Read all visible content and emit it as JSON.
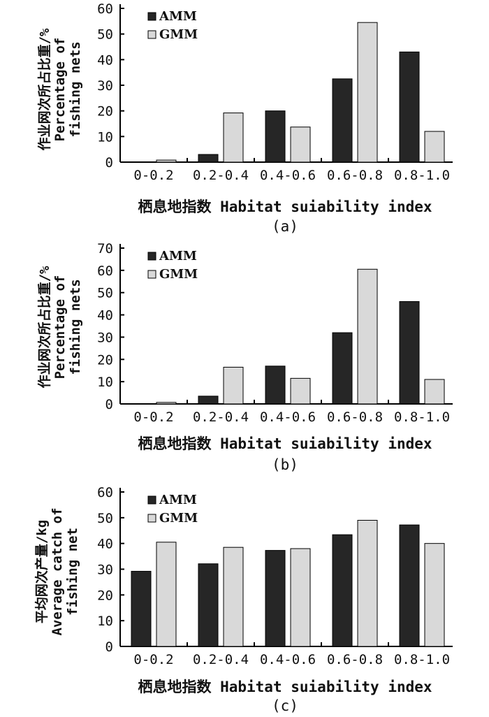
{
  "colors": {
    "AMM": "#262626",
    "GMM": "#d9d9d9",
    "axis": "#000000"
  },
  "chart_data": [
    {
      "type": "bar",
      "panel_label": "(a)",
      "categories": [
        "0-0.2",
        "0.2-0.4",
        "0.4-0.6",
        "0.6-0.8",
        "0.8-1.0"
      ],
      "series": [
        {
          "name": "AMM",
          "values": [
            0,
            3,
            20,
            32.5,
            43
          ]
        },
        {
          "name": "GMM",
          "values": [
            0.8,
            19.2,
            13.7,
            54.5,
            12
          ]
        }
      ],
      "ylabel_lines": [
        "作业网次所占比重/%",
        "Percentage of",
        "fishing nets"
      ],
      "xlabel": "栖息地指数 Habitat suiability index",
      "ylim": [
        0,
        60
      ],
      "yticks": [
        0,
        10,
        20,
        30,
        40,
        50,
        60
      ],
      "legend_position": "top-left",
      "grid": false
    },
    {
      "type": "bar",
      "panel_label": "(b)",
      "categories": [
        "0-0.2",
        "0.2-0.4",
        "0.4-0.6",
        "0.6-0.8",
        "0.8-1.0"
      ],
      "series": [
        {
          "name": "AMM",
          "values": [
            0,
            3.5,
            17,
            32,
            46
          ]
        },
        {
          "name": "GMM",
          "values": [
            0.7,
            16.5,
            11.5,
            60.5,
            11
          ]
        }
      ],
      "ylabel_lines": [
        "作业网次所占比重/%",
        "Percentage of",
        "fishing nets"
      ],
      "xlabel": "栖息地指数 Habitat suiability index",
      "ylim": [
        0,
        70
      ],
      "yticks": [
        0,
        10,
        20,
        30,
        40,
        50,
        60,
        70
      ],
      "legend_position": "top-left",
      "grid": false
    },
    {
      "type": "bar",
      "panel_label": "(c)",
      "categories": [
        "0-0.2",
        "0.2-0.4",
        "0.4-0.6",
        "0.6-0.8",
        "0.8-1.0"
      ],
      "series": [
        {
          "name": "AMM",
          "values": [
            29.2,
            32.1,
            37.3,
            43.4,
            47.2
          ]
        },
        {
          "name": "GMM",
          "values": [
            40.5,
            38.5,
            38,
            49,
            40
          ]
        }
      ],
      "ylabel_lines": [
        "平均网次产量/kg",
        "Average catch of",
        "fishing net"
      ],
      "xlabel": "栖息地指数 Habitat suiability index",
      "ylim": [
        0,
        60
      ],
      "yticks": [
        0,
        10,
        20,
        30,
        40,
        50,
        60
      ],
      "legend_position": "top-left",
      "grid": false
    }
  ]
}
